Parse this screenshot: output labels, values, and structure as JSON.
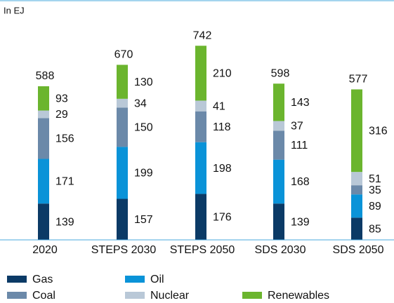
{
  "chart_data": {
    "type": "stacked-bar",
    "y_label": "In EJ",
    "categories": [
      "2020",
      "STEPS 2030",
      "STEPS 2050",
      "SDS 2030",
      "SDS 2050"
    ],
    "series": [
      {
        "name": "Gas",
        "color": "#0b3a66",
        "values": [
          139,
          157,
          176,
          139,
          85
        ]
      },
      {
        "name": "Oil",
        "color": "#0a93d8",
        "values": [
          171,
          199,
          198,
          168,
          89
        ]
      },
      {
        "name": "Coal",
        "color": "#6b89a9",
        "values": [
          156,
          150,
          118,
          111,
          35
        ]
      },
      {
        "name": "Nuclear",
        "color": "#b9c8d7",
        "values": [
          29,
          34,
          41,
          37,
          51
        ]
      },
      {
        "name": "Renewables",
        "color": "#6bb52e",
        "values": [
          93,
          130,
          210,
          143,
          316
        ]
      }
    ],
    "totals": [
      588,
      670,
      742,
      598,
      577
    ],
    "ylim": [
      0,
      800
    ]
  }
}
